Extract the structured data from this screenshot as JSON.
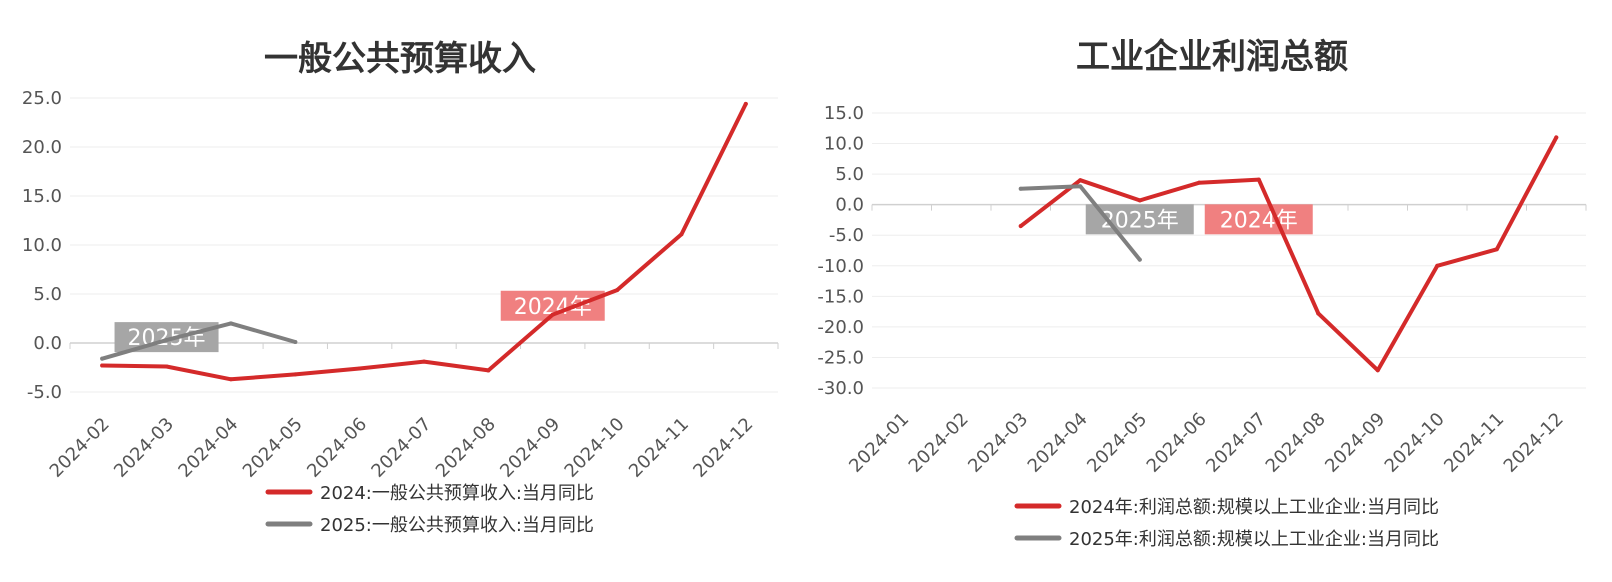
{
  "chart_data": [
    {
      "type": "line",
      "title": "一般公共预算收入",
      "x": [
        "2024-02",
        "2024-03",
        "2024-04",
        "2024-05",
        "2024-06",
        "2024-07",
        "2024-08",
        "2024-09",
        "2024-10",
        "2024-11",
        "2024-12"
      ],
      "x_tick_labels": [
        "2024-02",
        "2024-03",
        "2024-04",
        "2024-05",
        "2024-06",
        "2024-07",
        "2024-08",
        "2024-09",
        "2024-10",
        "2024-11",
        "2024-12"
      ],
      "ylim": [
        -5,
        25
      ],
      "y_ticks": [
        "25.0",
        "20.0",
        "15.0",
        "10.0",
        "5.0",
        "0.0",
        "-5.0"
      ],
      "grid": true,
      "legend_position": "bottom",
      "series": [
        {
          "name": "2024:一般公共预算收入:当月同比",
          "color": "#d42a2a",
          "values": [
            -2.3,
            -2.4,
            -3.7,
            -3.2,
            -2.6,
            -1.9,
            -2.8,
            2.9,
            5.4,
            11.1,
            24.4
          ]
        },
        {
          "name": "2025:一般公共预算收入:当月同比",
          "color": "#7f7f7f",
          "values": [
            -1.6,
            0.3,
            2.0,
            0.1,
            null,
            null,
            null,
            null,
            null,
            null,
            null
          ]
        }
      ],
      "annotations": [
        {
          "text": "2025年",
          "x": "2024-03",
          "y": 0.6,
          "color": "#a6a6a6"
        },
        {
          "text": "2024年",
          "x": "2024-09",
          "y": 3.8,
          "color": "#f08080"
        }
      ]
    },
    {
      "type": "line",
      "title": "工业企业利润总额",
      "x": [
        "2024-01",
        "2024-02",
        "2024-03",
        "2024-04",
        "2024-05",
        "2024-06",
        "2024-07",
        "2024-08",
        "2024-09",
        "2024-10",
        "2024-11",
        "2024-12"
      ],
      "x_tick_labels": [
        "2024-01",
        "2024-02",
        "2024-03",
        "2024-04",
        "2024-05",
        "2024-06",
        "2024-07",
        "2024-08",
        "2024-09",
        "2024-10",
        "2024-11",
        "2024-12"
      ],
      "ylim": [
        -30,
        15
      ],
      "y_ticks": [
        "15.0",
        "10.0",
        "5.0",
        "0.0",
        "-5.0",
        "-10.0",
        "-15.0",
        "-20.0",
        "-25.0",
        "-30.0"
      ],
      "grid": true,
      "legend_position": "bottom",
      "series": [
        {
          "name": "2024年:利润总额:规模以上工业企业:当月同比",
          "color": "#d42a2a",
          "values": [
            null,
            null,
            -3.5,
            4.0,
            0.7,
            3.6,
            4.1,
            -17.8,
            -27.1,
            -10.0,
            -7.3,
            11.0
          ]
        },
        {
          "name": "2025年:利润总额:规模以上工业企业:当月同比",
          "color": "#7f7f7f",
          "values": [
            null,
            null,
            2.6,
            3.0,
            -9.0,
            null,
            null,
            null,
            null,
            null,
            null,
            null
          ]
        }
      ],
      "annotations": [
        {
          "text": "2025年",
          "x": "2024-05",
          "y": -2.4,
          "color": "#a6a6a6"
        },
        {
          "text": "2024年",
          "x": "2024-07",
          "y": -2.4,
          "color": "#f08080"
        }
      ]
    }
  ]
}
